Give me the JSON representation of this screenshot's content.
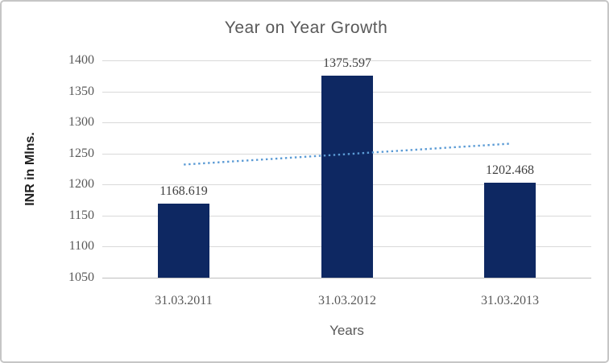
{
  "chart_data": {
    "type": "bar",
    "title": "Year on Year Growth",
    "xlabel": "Years",
    "ylabel": "INR in Mlns.",
    "categories": [
      "31.03.2011",
      "31.03.2012",
      "31.03.2013"
    ],
    "values": [
      1168.619,
      1375.597,
      1202.468
    ],
    "data_labels": [
      "1168.619",
      "1375.597",
      "1202.468"
    ],
    "ylim": [
      1050,
      1400
    ],
    "ytick_step": 50,
    "yticks": [
      "1400",
      "1350",
      "1300",
      "1250",
      "1200",
      "1150",
      "1100",
      "1050"
    ],
    "grid": "horizontal-major",
    "legend": "none",
    "trendline": {
      "type": "linear",
      "style": "dotted",
      "endpoint_values": [
        1232.2,
        1265.8
      ]
    },
    "colors": {
      "bar": "#0e2862",
      "trendline": "#5b9bd5",
      "gridline": "#d9d9d9",
      "axis_baseline": "#bfbfbf",
      "title_text": "#595959",
      "tick_text": "#595959",
      "data_label_text": "#404040",
      "axis_title_text": "#595959",
      "y_axis_title_text": "#1f1f1f",
      "frame_border": "#c6c6c6",
      "background": "#ffffff"
    }
  }
}
